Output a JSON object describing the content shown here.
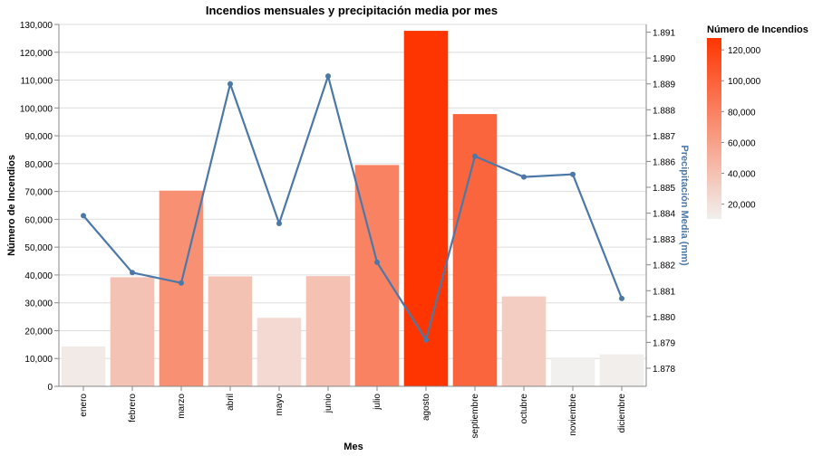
{
  "chart_data": {
    "type": "bar",
    "title": "Incendios mensuales y precipitación media por mes",
    "xlabel": "Mes",
    "ylabel": "Número de Incendios",
    "y2label": "Precipitación Media (mm)",
    "categories": [
      "enero",
      "febrero",
      "marzo",
      "abril",
      "mayo",
      "junio",
      "julio",
      "agosto",
      "septiembre",
      "octubre",
      "noviembre",
      "diciembre"
    ],
    "series": [
      {
        "name": "Número de Incendios",
        "type": "bar",
        "axis": "left",
        "values": [
          14300,
          39200,
          70300,
          39500,
          24600,
          39600,
          79500,
          127700,
          97800,
          32300,
          10400,
          11500
        ]
      },
      {
        "name": "Precipitación Media (mm)",
        "type": "line",
        "axis": "right",
        "color": "#4c78a8",
        "values": [
          1.8839,
          1.8817,
          1.8813,
          1.889,
          1.8836,
          1.8893,
          1.8821,
          1.8791,
          1.8862,
          1.8854,
          1.8855,
          1.8807
        ]
      }
    ],
    "ylim": [
      0,
      130000
    ],
    "yticks": [
      "0",
      "10,000",
      "20,000",
      "30,000",
      "40,000",
      "50,000",
      "60,000",
      "70,000",
      "80,000",
      "90,000",
      "100,000",
      "110,000",
      "120,000",
      "130,000"
    ],
    "y2lim": [
      1.8773,
      1.8913
    ],
    "y2ticks": [
      "1.878",
      "1.879",
      "1.880",
      "1.881",
      "1.882",
      "1.883",
      "1.884",
      "1.885",
      "1.886",
      "1.887",
      "1.888",
      "1.889",
      "1.890",
      "1.891"
    ],
    "grid": true,
    "legend": {
      "title": "Número de Incendios",
      "placement": "top-right",
      "type": "gradient",
      "labels": [
        "120,000",
        "100,000",
        "80,000",
        "60,000",
        "40,000",
        "20,000"
      ],
      "domain": [
        10400,
        127700
      ],
      "color_low": "#f1f0ee",
      "color_high": "#ff3500"
    }
  }
}
